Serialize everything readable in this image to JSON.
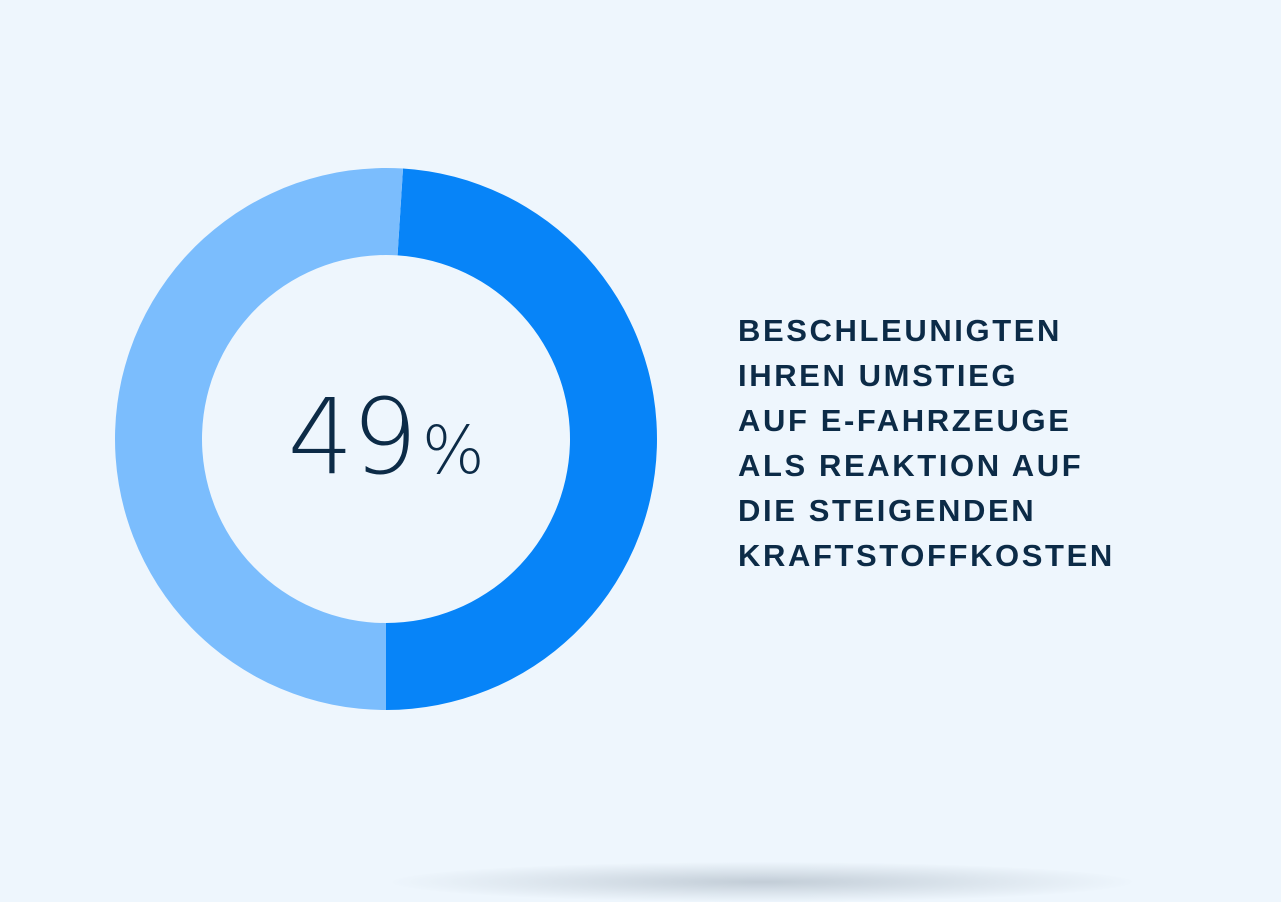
{
  "chart_data": {
    "type": "pie",
    "hole": true,
    "display_value": "49",
    "display_unit": "%",
    "slices": [
      {
        "label": "",
        "value": 49,
        "color": "#0784f8"
      },
      {
        "label": "",
        "value": 51,
        "color": "#7bbdfd"
      }
    ]
  },
  "caption": {
    "lines": [
      "BESCHLEUNIGTEN",
      "IHREN UMSTIEG",
      "AUF E-FAHRZEUGE",
      "ALS REAKTION AUF",
      "DIE STEIGENDEN",
      "KRAFTSTOFFKOSTEN"
    ]
  },
  "colors": {
    "background": "#eef6fd",
    "text": "#0c2b47"
  }
}
